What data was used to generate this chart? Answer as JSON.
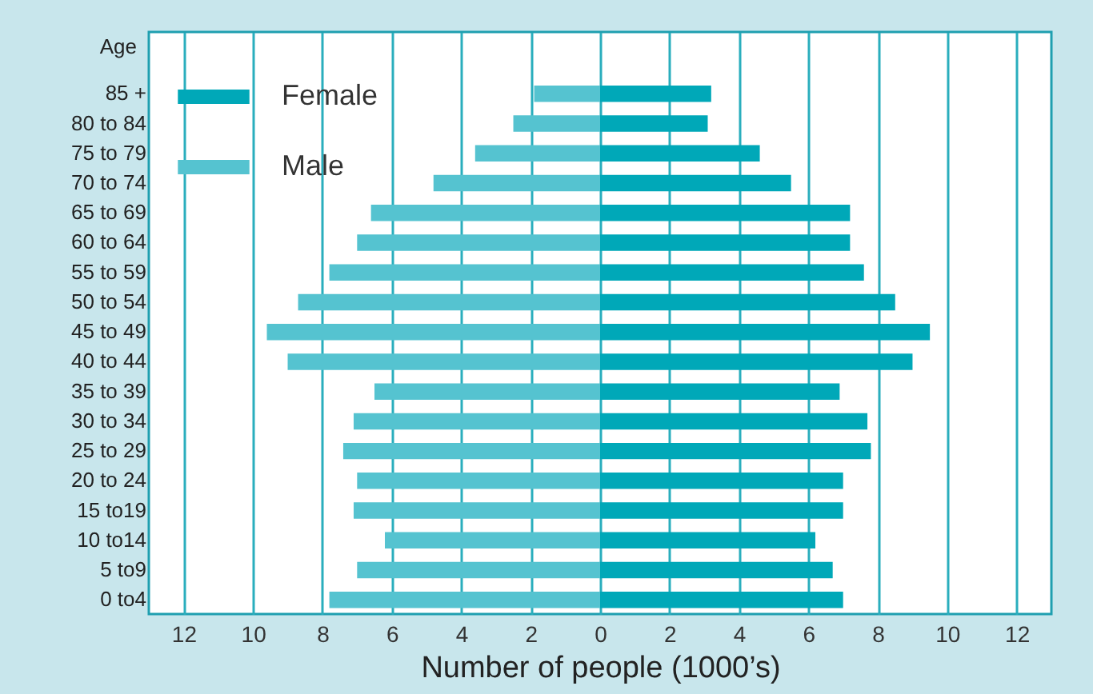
{
  "chart_data": {
    "type": "bar",
    "orientation": "horizontal",
    "xlabel": "Number of people (1000’s)",
    "ylabel": "Age",
    "categories": [
      "85 +",
      "80 to 84",
      "75 to 79",
      "70 to 74",
      "65 to 69",
      "60 to 64",
      "55 to 59",
      "50 to 54",
      "45 to 49",
      "40 to 44",
      "35 to 39",
      "30 to 34",
      "25 to 29",
      "20 to 24",
      "15 to19",
      "10 to14",
      "5 to9",
      "0 to4"
    ],
    "series": [
      {
        "name": "Female",
        "color": "#00a8b8",
        "values": [
          3.2,
          3.1,
          4.6,
          5.5,
          7.2,
          7.2,
          7.6,
          8.5,
          9.5,
          9.0,
          6.9,
          7.7,
          7.8,
          7.0,
          7.0,
          6.2,
          6.7,
          7.0
        ]
      },
      {
        "name": "Male",
        "color": "#55c3d0",
        "values": [
          -1.9,
          -2.5,
          -3.6,
          -4.8,
          -6.6,
          -7.0,
          -7.8,
          -8.7,
          -9.6,
          -9.0,
          -6.5,
          -7.1,
          -7.4,
          -7.0,
          -7.1,
          -6.2,
          -7.0,
          -7.8
        ]
      }
    ],
    "xlim": [
      -13,
      13
    ],
    "xticks": [
      {
        "value": -12,
        "label": "12"
      },
      {
        "value": -10,
        "label": "10"
      },
      {
        "value": -8,
        "label": "8"
      },
      {
        "value": -6,
        "label": "6"
      },
      {
        "value": -4,
        "label": "4"
      },
      {
        "value": -2,
        "label": "2"
      },
      0,
      2,
      4,
      6,
      8,
      10,
      12
    ],
    "grid": "x",
    "legend": "top left",
    "stacked": true
  }
}
